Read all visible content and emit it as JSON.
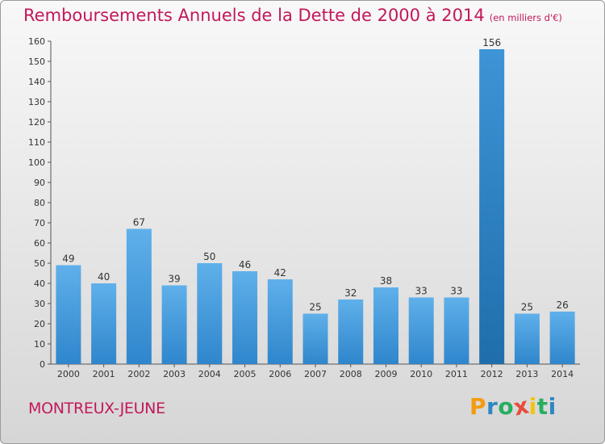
{
  "title": "Remboursements Annuels de la Dette de 2000 à 2014",
  "subtitle": "(en milliers d'€)",
  "location": "MONTREUX-JEUNE",
  "logo": {
    "letters": [
      "P",
      "r",
      "o",
      "x",
      "i",
      "t",
      "i"
    ],
    "colors": [
      "#f39c12",
      "#2e86c1",
      "#27ae60",
      "#e74c3c",
      "#f1c40f",
      "#27ae60",
      "#2e86c1"
    ]
  },
  "colors": {
    "bar_normal": "#4aa0de",
    "bar_highlight": "#2f80c2",
    "title": "#c2185b"
  },
  "chart_data": {
    "type": "bar",
    "categories": [
      "2000",
      "2001",
      "2002",
      "2003",
      "2004",
      "2005",
      "2006",
      "2007",
      "2008",
      "2009",
      "2010",
      "2011",
      "2012",
      "2013",
      "2014"
    ],
    "values": [
      49,
      40,
      67,
      39,
      50,
      46,
      42,
      25,
      32,
      38,
      33,
      33,
      156,
      25,
      26
    ],
    "value_labels": [
      "49",
      "40",
      "67",
      "39",
      "50",
      "46",
      "42",
      "25",
      "32",
      "38",
      "33",
      "33",
      "156",
      "25",
      "26"
    ],
    "title": "Remboursements Annuels de la Dette de 2000 à 2014",
    "xlabel": "",
    "ylabel": "",
    "ylim": [
      0,
      160
    ],
    "yticks": [
      0,
      10,
      20,
      30,
      40,
      50,
      60,
      70,
      80,
      90,
      100,
      110,
      120,
      130,
      140,
      150,
      160
    ],
    "ytick_labels": [
      "0",
      "10",
      "20",
      "30",
      "40",
      "50",
      "60",
      "70",
      "80",
      "90",
      "100",
      "110",
      "120",
      "130",
      "140",
      "150",
      "160"
    ],
    "highlight_index": 12,
    "grid": false,
    "legend": "none"
  }
}
